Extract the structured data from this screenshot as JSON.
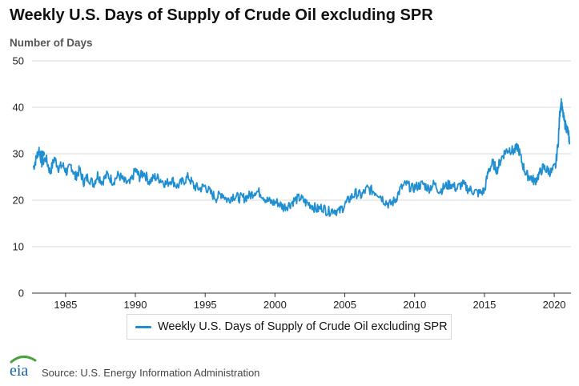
{
  "chart_data": {
    "type": "line",
    "title": "Weekly U.S. Days of Supply of Crude Oil excluding SPR",
    "ylabel": "Number of Days",
    "xlabel": "",
    "ylim": [
      0,
      50
    ],
    "xlim": [
      1982.6,
      2021.2
    ],
    "yticks": [
      "0",
      "10",
      "20",
      "30",
      "40",
      "50"
    ],
    "xticks": [
      "1985",
      "1990",
      "1995",
      "2000",
      "2005",
      "2010",
      "2015",
      "2020"
    ],
    "grid": true,
    "legend_position": "bottom",
    "series": [
      {
        "name": "Weekly U.S. Days of Supply of Crude Oil excluding SPR",
        "color": "#1f8fd2",
        "points": [
          [
            1982.7,
            27
          ],
          [
            1982.9,
            29
          ],
          [
            1983.1,
            31
          ],
          [
            1983.3,
            28
          ],
          [
            1983.6,
            29
          ],
          [
            1983.9,
            26
          ],
          [
            1984.2,
            29
          ],
          [
            1984.5,
            27
          ],
          [
            1984.8,
            27.5
          ],
          [
            1985.1,
            26
          ],
          [
            1985.4,
            27.5
          ],
          [
            1985.7,
            25
          ],
          [
            1986.0,
            26.5
          ],
          [
            1986.3,
            24
          ],
          [
            1986.6,
            25
          ],
          [
            1987.0,
            23.5
          ],
          [
            1987.3,
            25.5
          ],
          [
            1987.6,
            24
          ],
          [
            1988.0,
            25.5
          ],
          [
            1988.4,
            24
          ],
          [
            1988.8,
            25.5
          ],
          [
            1989.2,
            24
          ],
          [
            1989.6,
            23.5
          ],
          [
            1990.0,
            26.5
          ],
          [
            1990.3,
            25
          ],
          [
            1990.6,
            26
          ],
          [
            1991.0,
            24
          ],
          [
            1991.4,
            25
          ],
          [
            1991.8,
            24.5
          ],
          [
            1992.2,
            23.5
          ],
          [
            1992.6,
            24.5
          ],
          [
            1993.0,
            23
          ],
          [
            1993.4,
            24
          ],
          [
            1993.8,
            25
          ],
          [
            1994.2,
            23
          ],
          [
            1994.6,
            22.5
          ],
          [
            1995.0,
            23
          ],
          [
            1995.4,
            21.5
          ],
          [
            1995.8,
            20.5
          ],
          [
            1996.2,
            21.5
          ],
          [
            1996.6,
            20
          ],
          [
            1997.0,
            21
          ],
          [
            1997.4,
            20.5
          ],
          [
            1997.8,
            20.5
          ],
          [
            1998.2,
            21
          ],
          [
            1998.6,
            22
          ],
          [
            1999.0,
            21.5
          ],
          [
            1999.4,
            20
          ],
          [
            1999.8,
            19.5
          ],
          [
            2000.2,
            19.5
          ],
          [
            2000.6,
            18.5
          ],
          [
            2001.0,
            19
          ],
          [
            2001.4,
            20
          ],
          [
            2001.8,
            20.5
          ],
          [
            2002.2,
            19.5
          ],
          [
            2002.6,
            19
          ],
          [
            2003.0,
            18
          ],
          [
            2003.4,
            18.5
          ],
          [
            2003.8,
            17.5
          ],
          [
            2004.2,
            18
          ],
          [
            2004.6,
            17.5
          ],
          [
            2005.0,
            19
          ],
          [
            2005.4,
            20.5
          ],
          [
            2005.8,
            21.5
          ],
          [
            2006.2,
            21
          ],
          [
            2006.6,
            22.5
          ],
          [
            2007.0,
            22
          ],
          [
            2007.4,
            21.5
          ],
          [
            2007.8,
            20
          ],
          [
            2008.2,
            19
          ],
          [
            2008.6,
            20
          ],
          [
            2009.0,
            22.5
          ],
          [
            2009.4,
            23.5
          ],
          [
            2009.8,
            22.5
          ],
          [
            2010.2,
            23
          ],
          [
            2010.6,
            23.5
          ],
          [
            2011.0,
            22.5
          ],
          [
            2011.4,
            23.5
          ],
          [
            2011.8,
            22
          ],
          [
            2012.2,
            23
          ],
          [
            2012.6,
            23.5
          ],
          [
            2013.0,
            22.5
          ],
          [
            2013.4,
            23.5
          ],
          [
            2013.8,
            22.5
          ],
          [
            2014.2,
            22
          ],
          [
            2014.6,
            21.5
          ],
          [
            2015.0,
            22
          ],
          [
            2015.3,
            26.5
          ],
          [
            2015.6,
            28
          ],
          [
            2015.9,
            26.5
          ],
          [
            2016.2,
            29
          ],
          [
            2016.5,
            30.5
          ],
          [
            2016.8,
            31
          ],
          [
            2017.1,
            30.5
          ],
          [
            2017.4,
            31.5
          ],
          [
            2017.7,
            28
          ],
          [
            2018.0,
            25.5
          ],
          [
            2018.3,
            25
          ],
          [
            2018.6,
            24
          ],
          [
            2018.9,
            25.5
          ],
          [
            2019.2,
            27
          ],
          [
            2019.5,
            26.5
          ],
          [
            2019.8,
            26
          ],
          [
            2020.1,
            27.5
          ],
          [
            2020.3,
            33
          ],
          [
            2020.4,
            39
          ],
          [
            2020.5,
            41
          ],
          [
            2020.6,
            39
          ],
          [
            2020.75,
            36.5
          ],
          [
            2020.9,
            35.5
          ],
          [
            2021.0,
            34.5
          ],
          [
            2021.1,
            32.5
          ]
        ]
      }
    ],
    "marker": {
      "x": 1983.3,
      "y": 30
    }
  },
  "legend": {
    "label": "Weekly U.S. Days of Supply of Crude Oil excluding SPR"
  },
  "footer": {
    "source": "Source: U.S. Energy Information Administration",
    "logo_text": "eia"
  }
}
